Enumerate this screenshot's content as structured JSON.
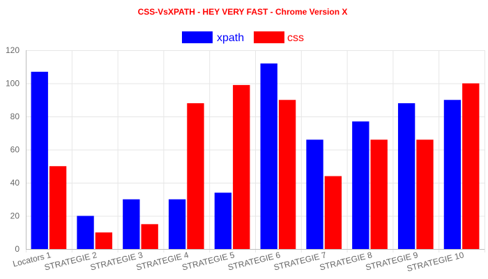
{
  "chart_data": {
    "type": "bar",
    "title": "CSS-VsXPATH - HEY VERY FAST - Chrome Version X",
    "title_color": "#ff0000",
    "categories": [
      "Locators 1",
      "STRATEGIE 2",
      "STRATEGIE 3",
      "STRATEGIE 4",
      "STRATEGIE 5",
      "STRATEGIE 6",
      "STRATEGIE 7",
      "STRATEGIE 8",
      "STRATEGIE 9",
      "STRATEGIE 10"
    ],
    "series": [
      {
        "name": "xpath",
        "color": "#0000ff",
        "values": [
          107,
          20,
          30,
          30,
          34,
          112,
          66,
          77,
          88,
          90
        ]
      },
      {
        "name": "css",
        "color": "#ff0000",
        "values": [
          50,
          10,
          15,
          88,
          99,
          90,
          44,
          66,
          66,
          100
        ]
      }
    ],
    "xlabel": "",
    "ylabel": "",
    "ylim": [
      0,
      120
    ],
    "yticks": [
      0,
      20,
      40,
      60,
      80,
      100,
      120
    ],
    "grid": true,
    "legend_position": "top"
  }
}
